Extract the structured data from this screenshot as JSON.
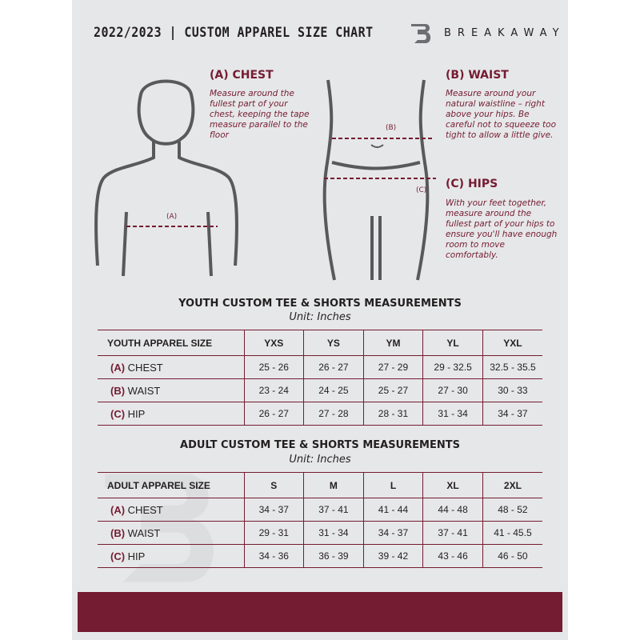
{
  "header": {
    "title": "2022/2023 | CUSTOM APPAREL SIZE CHART",
    "brand": "BREAKAWAY",
    "logo_letter": "B"
  },
  "chest": {
    "title": "(A) CHEST",
    "desc": "Measure around the fullest part of your chest, keeping the tape measure parallel to the floor",
    "marker": "(A)"
  },
  "waist": {
    "title": "(B) WAIST",
    "desc": "Measure around your natural waistline – right above your hips. Be careful not to squeeze too tight to allow a little give.",
    "marker": "(B)"
  },
  "hips": {
    "title": "(C) HIPS",
    "desc": "With your feet together, measure around the fullest part of your hips to ensure you'll have enough room to move comfortably.",
    "marker": "(C)"
  },
  "youth": {
    "title": "YOUTH CUSTOM TEE & SHORTS MEASUREMENTS",
    "unit": "Unit: Inches",
    "size_label": "YOUTH APPAREL SIZE",
    "sizes": [
      "YXS",
      "YS",
      "YM",
      "YL",
      "YXL"
    ],
    "rows": [
      {
        "code": "(A)",
        "name": "CHEST",
        "values": [
          "25 - 26",
          "26 - 27",
          "27 - 29",
          "29 - 32.5",
          "32.5 - 35.5"
        ]
      },
      {
        "code": "(B)",
        "name": "WAIST",
        "values": [
          "23 - 24",
          "24 - 25",
          "25 - 27",
          "27 - 30",
          "30 - 33"
        ]
      },
      {
        "code": "(C)",
        "name": "HIP",
        "values": [
          "26 - 27",
          "27 - 28",
          "28 - 31",
          "31 - 34",
          "34 - 37"
        ]
      }
    ]
  },
  "adult": {
    "title": "ADULT CUSTOM TEE & SHORTS MEASUREMENTS",
    "unit": "Unit: Inches",
    "size_label": "ADULT APPAREL SIZE",
    "sizes": [
      "S",
      "M",
      "L",
      "XL",
      "2XL"
    ],
    "rows": [
      {
        "code": "(A)",
        "name": "CHEST",
        "values": [
          "34 - 37",
          "37 - 41",
          "41 - 44",
          "44 - 48",
          "48 - 52"
        ]
      },
      {
        "code": "(B)",
        "name": "WAIST",
        "values": [
          "29 - 31",
          "31 - 34",
          "34 - 37",
          "37 - 41",
          "41 - 45.5"
        ]
      },
      {
        "code": "(C)",
        "name": "HIP",
        "values": [
          "34 - 36",
          "36 - 39",
          "39 - 42",
          "43 - 46",
          "46 - 50"
        ]
      }
    ]
  },
  "colors": {
    "accent": "#741c32",
    "background": "#e6e7e8",
    "text": "#231f20"
  }
}
